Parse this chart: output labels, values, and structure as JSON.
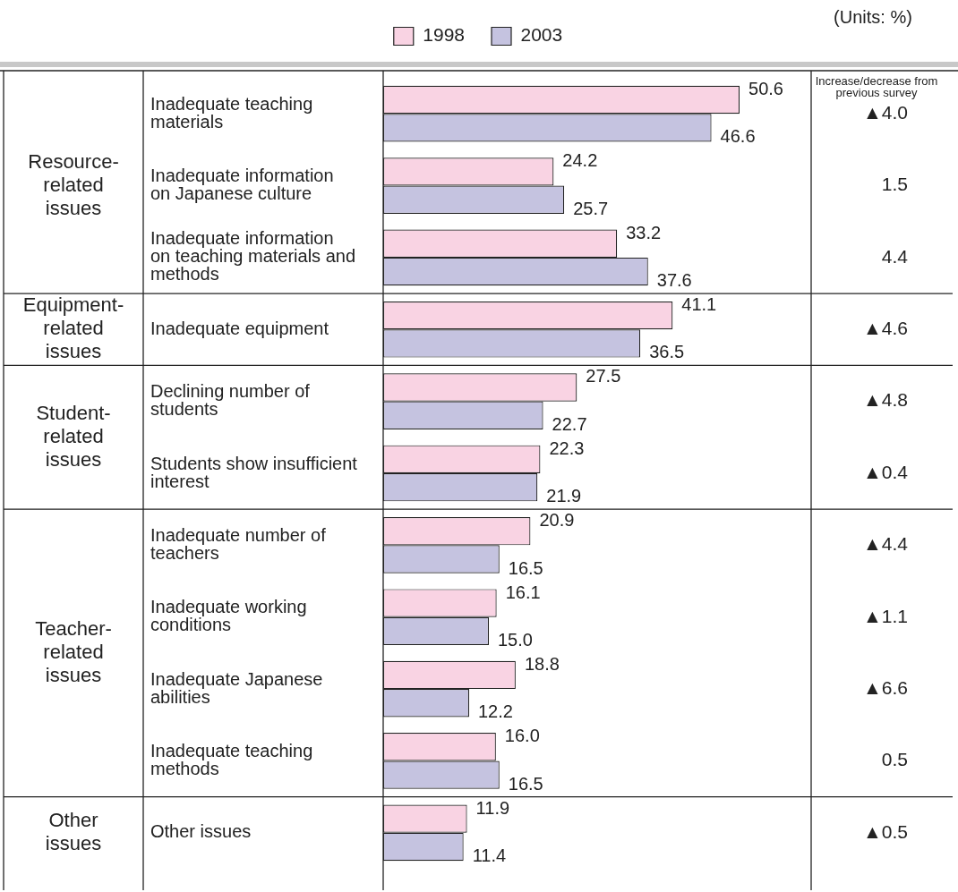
{
  "chart_data": {
    "type": "bar",
    "orientation": "horizontal",
    "categories": [
      "Inadequate teaching materials",
      "Inadequate information on Japanese culture",
      "Inadequate information on teaching materials and methods",
      "Inadequate equipment",
      "Declining number of students",
      "Students show insufficient interest",
      "Inadequate number of teachers",
      "Inadequate working conditions",
      "Inadequate Japanese abilities",
      "Inadequate teaching methods",
      "Other issues"
    ],
    "series": [
      {
        "name": "1998",
        "color": "#f9d3e3",
        "values": [
          50.6,
          24.2,
          33.2,
          41.1,
          27.5,
          22.3,
          20.9,
          16.1,
          18.8,
          16.0,
          11.9
        ],
        "value_labels": [
          "50.6",
          "24.2",
          "33.2",
          "41.1",
          "27.5",
          "22.3",
          "20.9",
          "16.1",
          "18.8",
          "16.0",
          "11.9"
        ]
      },
      {
        "name": "2003",
        "color": "#c5c3e0",
        "values": [
          46.6,
          25.7,
          37.6,
          36.5,
          22.7,
          21.9,
          16.5,
          15.0,
          12.2,
          16.5,
          11.4
        ],
        "value_labels": [
          "46.6",
          "25.7",
          "37.6",
          "36.5",
          "22.7",
          "21.9",
          "16.5",
          "15.0",
          "12.2",
          "16.5",
          "11.4"
        ]
      }
    ],
    "legend": "top",
    "annotations": [
      "(Units: %)",
      "Increase/decrease from previous survey",
      "▲4.0",
      "1.5",
      "4.4",
      "▲4.6",
      "▲4.8",
      "▲0.4",
      "▲4.4",
      "▲1.1",
      "▲6.6",
      "0.5",
      "▲0.5",
      "Resource-related issues",
      "Equipment-related issues",
      "Student-related issues",
      "Teacher-related issues",
      "Other issues"
    ]
  }
}
